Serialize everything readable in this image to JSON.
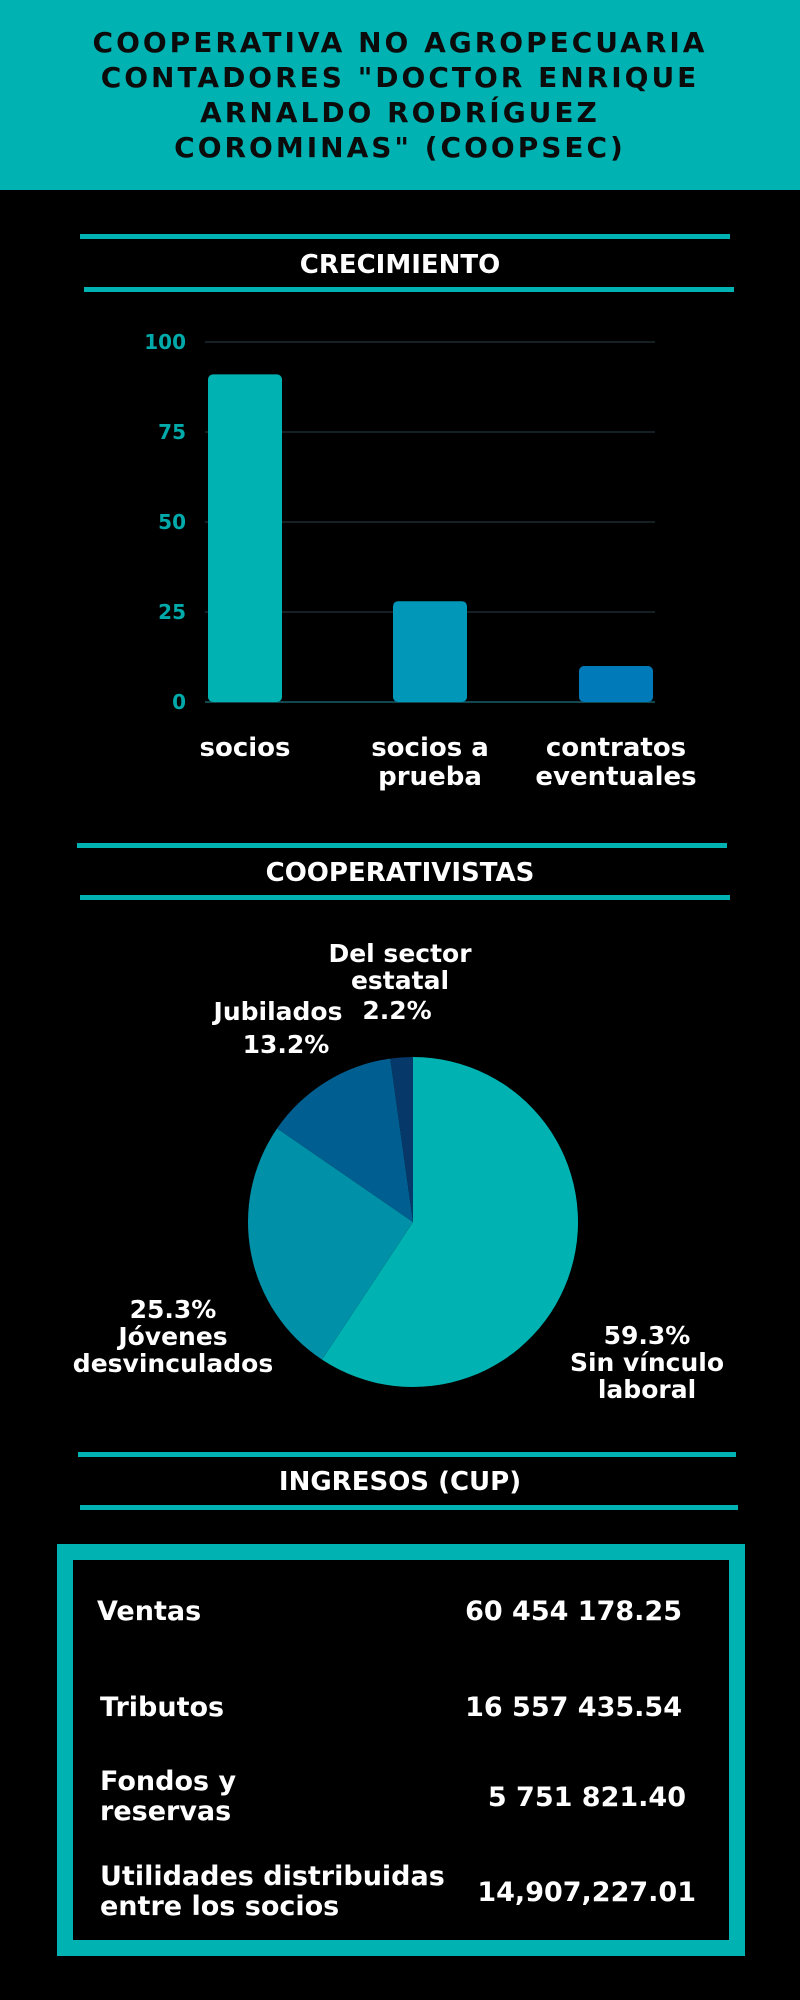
{
  "header": {
    "title": "COOPERATIVA NO AGROPECUARIA CONTADORES \"DOCTOR ENRIQUE ARNALDO RODRÍGUEZ COROMINAS\" (COOPSEC)"
  },
  "sections": {
    "growth_title": "CRECIMIENTO",
    "members_title": "COOPERATIVISTAS",
    "income_title": "INGRESOS (CUP)"
  },
  "chart_data": [
    {
      "type": "bar",
      "categories": [
        "socios",
        "socios a prueba",
        "contratos eventuales"
      ],
      "category_lines": [
        [
          "socios"
        ],
        [
          "socios a",
          "prueba"
        ],
        [
          "contratos",
          "eventuales"
        ]
      ],
      "values": [
        91,
        28,
        10
      ],
      "ylim": [
        0,
        100
      ],
      "yticks": [
        "0",
        "25",
        "50",
        "75",
        "100"
      ],
      "colors": [
        "#00b2b2",
        "#0097b8",
        "#007ab9"
      ],
      "grid": true
    },
    {
      "type": "pie",
      "slices": [
        {
          "label": "Sin vínculo laboral",
          "value": 59.3,
          "value_text": "59.3%",
          "lines": [
            "Sin vínculo",
            "laboral"
          ],
          "color": "#00b2b2"
        },
        {
          "label": "Jóvenes desvinculados",
          "value": 25.3,
          "value_text": "25.3%",
          "lines": [
            "Jóvenes",
            "desvinculados"
          ],
          "color": "#0090a8"
        },
        {
          "label": "Jubilados",
          "value": 13.2,
          "value_text": "13.2%",
          "lines": [
            "Jubilados"
          ],
          "color": "#005f90"
        },
        {
          "label": "Del sector estatal",
          "value": 2.2,
          "value_text": "2.2%",
          "lines": [
            "Del sector",
            "estatal"
          ],
          "color": "#06396a"
        }
      ]
    }
  ],
  "income": {
    "rows": [
      {
        "label_lines": [
          "Ventas"
        ],
        "value": "60 454 178.25"
      },
      {
        "label_lines": [
          "Tributos"
        ],
        "value": "16 557 435.54"
      },
      {
        "label_lines": [
          "Fondos y",
          "reservas"
        ],
        "value": "5 751 821.40"
      },
      {
        "label_lines": [
          "Utilidades distribuidas",
          "entre los socios"
        ],
        "value": "14,907,227.01"
      }
    ]
  },
  "colors": {
    "accent": "#00b2b2",
    "background": "#000000",
    "text": "#ffffff"
  }
}
